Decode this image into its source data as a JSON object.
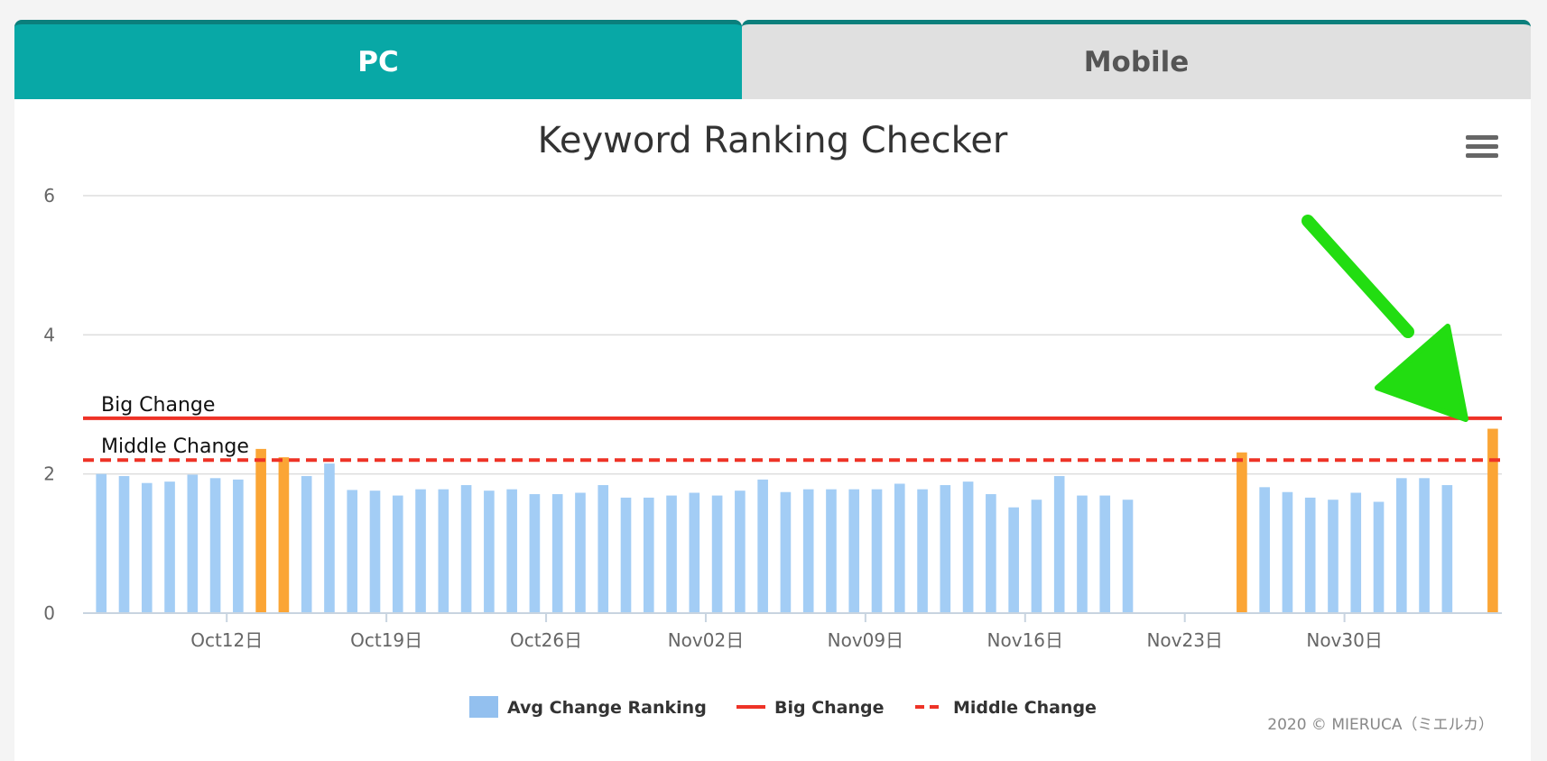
{
  "tabs": [
    {
      "label": "PC",
      "active": true
    },
    {
      "label": "Mobile",
      "active": false
    }
  ],
  "menu_icon": "hamburger-menu-icon",
  "credit": "2020 © MIERUCA（ミエルカ）",
  "colors": {
    "teal": "#08a8a6",
    "bar_normal": "#a3cdf5",
    "bar_highlight": "#fba535",
    "big_change": "#ee3327",
    "middle_change": "#ee3327",
    "arrow": "#22dd11"
  },
  "chart_data": {
    "type": "bar",
    "title": "Keyword Ranking Checker",
    "xlabel": "",
    "ylabel": "",
    "ylim": [
      0,
      6
    ],
    "yticks": [
      "0",
      "2",
      "4",
      "6"
    ],
    "xticks": [
      "Oct12日",
      "Oct19日",
      "Oct26日",
      "Nov02日",
      "Nov09日",
      "Nov16日",
      "Nov23日",
      "Nov30日"
    ],
    "xtick_day_index": [
      6,
      13,
      20,
      27,
      34,
      41,
      48,
      55
    ],
    "grid": true,
    "series": [
      {
        "name": "Avg Change Ranking",
        "values": [
          2.0,
          1.97,
          1.87,
          1.89,
          1.99,
          1.94,
          1.92,
          2.36,
          2.24,
          1.97,
          2.15,
          1.77,
          1.76,
          1.69,
          1.78,
          1.78,
          1.84,
          1.76,
          1.78,
          1.71,
          1.71,
          1.73,
          1.84,
          1.66,
          1.66,
          1.69,
          1.73,
          1.69,
          1.76,
          1.92,
          1.74,
          1.78,
          1.78,
          1.78,
          1.78,
          1.86,
          1.78,
          1.84,
          1.89,
          1.71,
          1.52,
          1.63,
          1.97,
          1.69,
          1.69,
          1.63,
          null,
          null,
          null,
          null,
          2.31,
          1.81,
          1.74,
          1.66,
          1.63,
          1.73,
          1.6,
          1.94,
          1.94,
          1.84,
          null,
          2.65
        ],
        "highlight": [
          false,
          false,
          false,
          false,
          false,
          false,
          false,
          true,
          true,
          false,
          false,
          false,
          false,
          false,
          false,
          false,
          false,
          false,
          false,
          false,
          false,
          false,
          false,
          false,
          false,
          false,
          false,
          false,
          false,
          false,
          false,
          false,
          false,
          false,
          false,
          false,
          false,
          false,
          false,
          false,
          false,
          false,
          false,
          false,
          false,
          false,
          false,
          false,
          false,
          false,
          true,
          false,
          false,
          false,
          false,
          false,
          false,
          false,
          false,
          false,
          false,
          true
        ]
      }
    ],
    "reference_lines": [
      {
        "name": "Big Change",
        "label": "Big Change",
        "value": 2.8,
        "style": "solid"
      },
      {
        "name": "Middle Change",
        "label": "Middle Change",
        "value": 2.2,
        "style": "dashed"
      }
    ],
    "legend": {
      "position": "bottom",
      "items": [
        "Avg Change Ranking",
        "Big Change",
        "Middle Change"
      ]
    },
    "annotation": "green-arrow-pointing-to-last-bar"
  }
}
